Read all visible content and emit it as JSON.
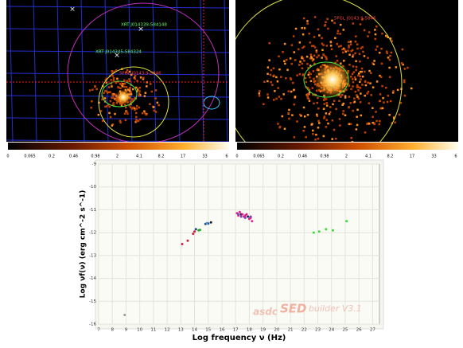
{
  "images": [
    {
      "labels": [
        "XRT J014339-584148",
        "XRT J014345-584324",
        "5FGL J0143.9-5846"
      ],
      "colorbar": [
        "0",
        "0.065",
        "0.2",
        "0.46",
        "0.98",
        "2",
        "4.1",
        "8.2",
        "17",
        "33",
        "6"
      ]
    },
    {
      "labels": [
        "5FGL J0143.9-5846"
      ],
      "colorbar": [
        "0",
        "0.065",
        "0.2",
        "0.46",
        "0.98",
        "2",
        "4.1",
        "8.2",
        "17",
        "33",
        "6"
      ]
    }
  ],
  "chart_data": {
    "type": "scatter",
    "xlabel": "Log frequency ν (Hz)",
    "ylabel": "Log νf(ν) (erg cm^-2 s^-1)",
    "watermark": [
      "asdc",
      "SED",
      "builder V3.1"
    ],
    "xlim": [
      7,
      27.5
    ],
    "ylim": [
      -16,
      -9
    ],
    "xticks": [
      7,
      8,
      9,
      10,
      11,
      12,
      13,
      14,
      15,
      16,
      17,
      18,
      19,
      20,
      21,
      22,
      23,
      24,
      25,
      26,
      27
    ],
    "yticks": [
      -16,
      -15,
      -14,
      -13,
      -12,
      -11,
      -10,
      -9
    ],
    "grid": true,
    "series": [
      {
        "color": "#999999",
        "x": [
          8.9
        ],
        "values": [
          -15.6
        ]
      },
      {
        "color": "#d02040",
        "x": [
          13.1,
          13.5,
          13.9,
          14.0
        ],
        "values": [
          -12.5,
          -12.35,
          -12.05,
          -11.95
        ]
      },
      {
        "color": "#20408a",
        "x": [
          14.1,
          14.8,
          15.0
        ],
        "values": [
          -11.85,
          -11.62,
          -11.6
        ]
      },
      {
        "color": "#22aa22",
        "x": [
          14.3,
          14.4
        ],
        "values": [
          -11.9,
          -11.88
        ]
      },
      {
        "color": "#1a1a1a",
        "x": [
          15.2,
          17.4,
          17.9
        ],
        "values": [
          -11.55,
          -11.2,
          -11.3
        ]
      },
      {
        "color": "#40a0e0",
        "x": [
          14.9,
          18.0
        ],
        "values": [
          -11.58,
          -11.35
        ]
      },
      {
        "color": "#e0208a",
        "x": [
          17.1,
          17.2,
          17.3,
          17.5,
          17.6,
          17.7,
          17.8,
          18.0,
          18.1,
          18.2
        ],
        "values": [
          -11.15,
          -11.25,
          -11.1,
          -11.2,
          -11.3,
          -11.25,
          -11.2,
          -11.4,
          -11.35,
          -11.5
        ]
      },
      {
        "color": "#8040c0",
        "x": [
          17.2,
          17.4,
          17.7,
          18.1
        ],
        "values": [
          -11.2,
          -11.3,
          -11.35,
          -11.3
        ]
      },
      {
        "color": "#33dd33",
        "x": [
          22.7,
          23.1,
          23.6,
          24.1,
          25.1
        ],
        "values": [
          -12.0,
          -11.95,
          -11.85,
          -11.9,
          -11.5
        ]
      }
    ]
  }
}
